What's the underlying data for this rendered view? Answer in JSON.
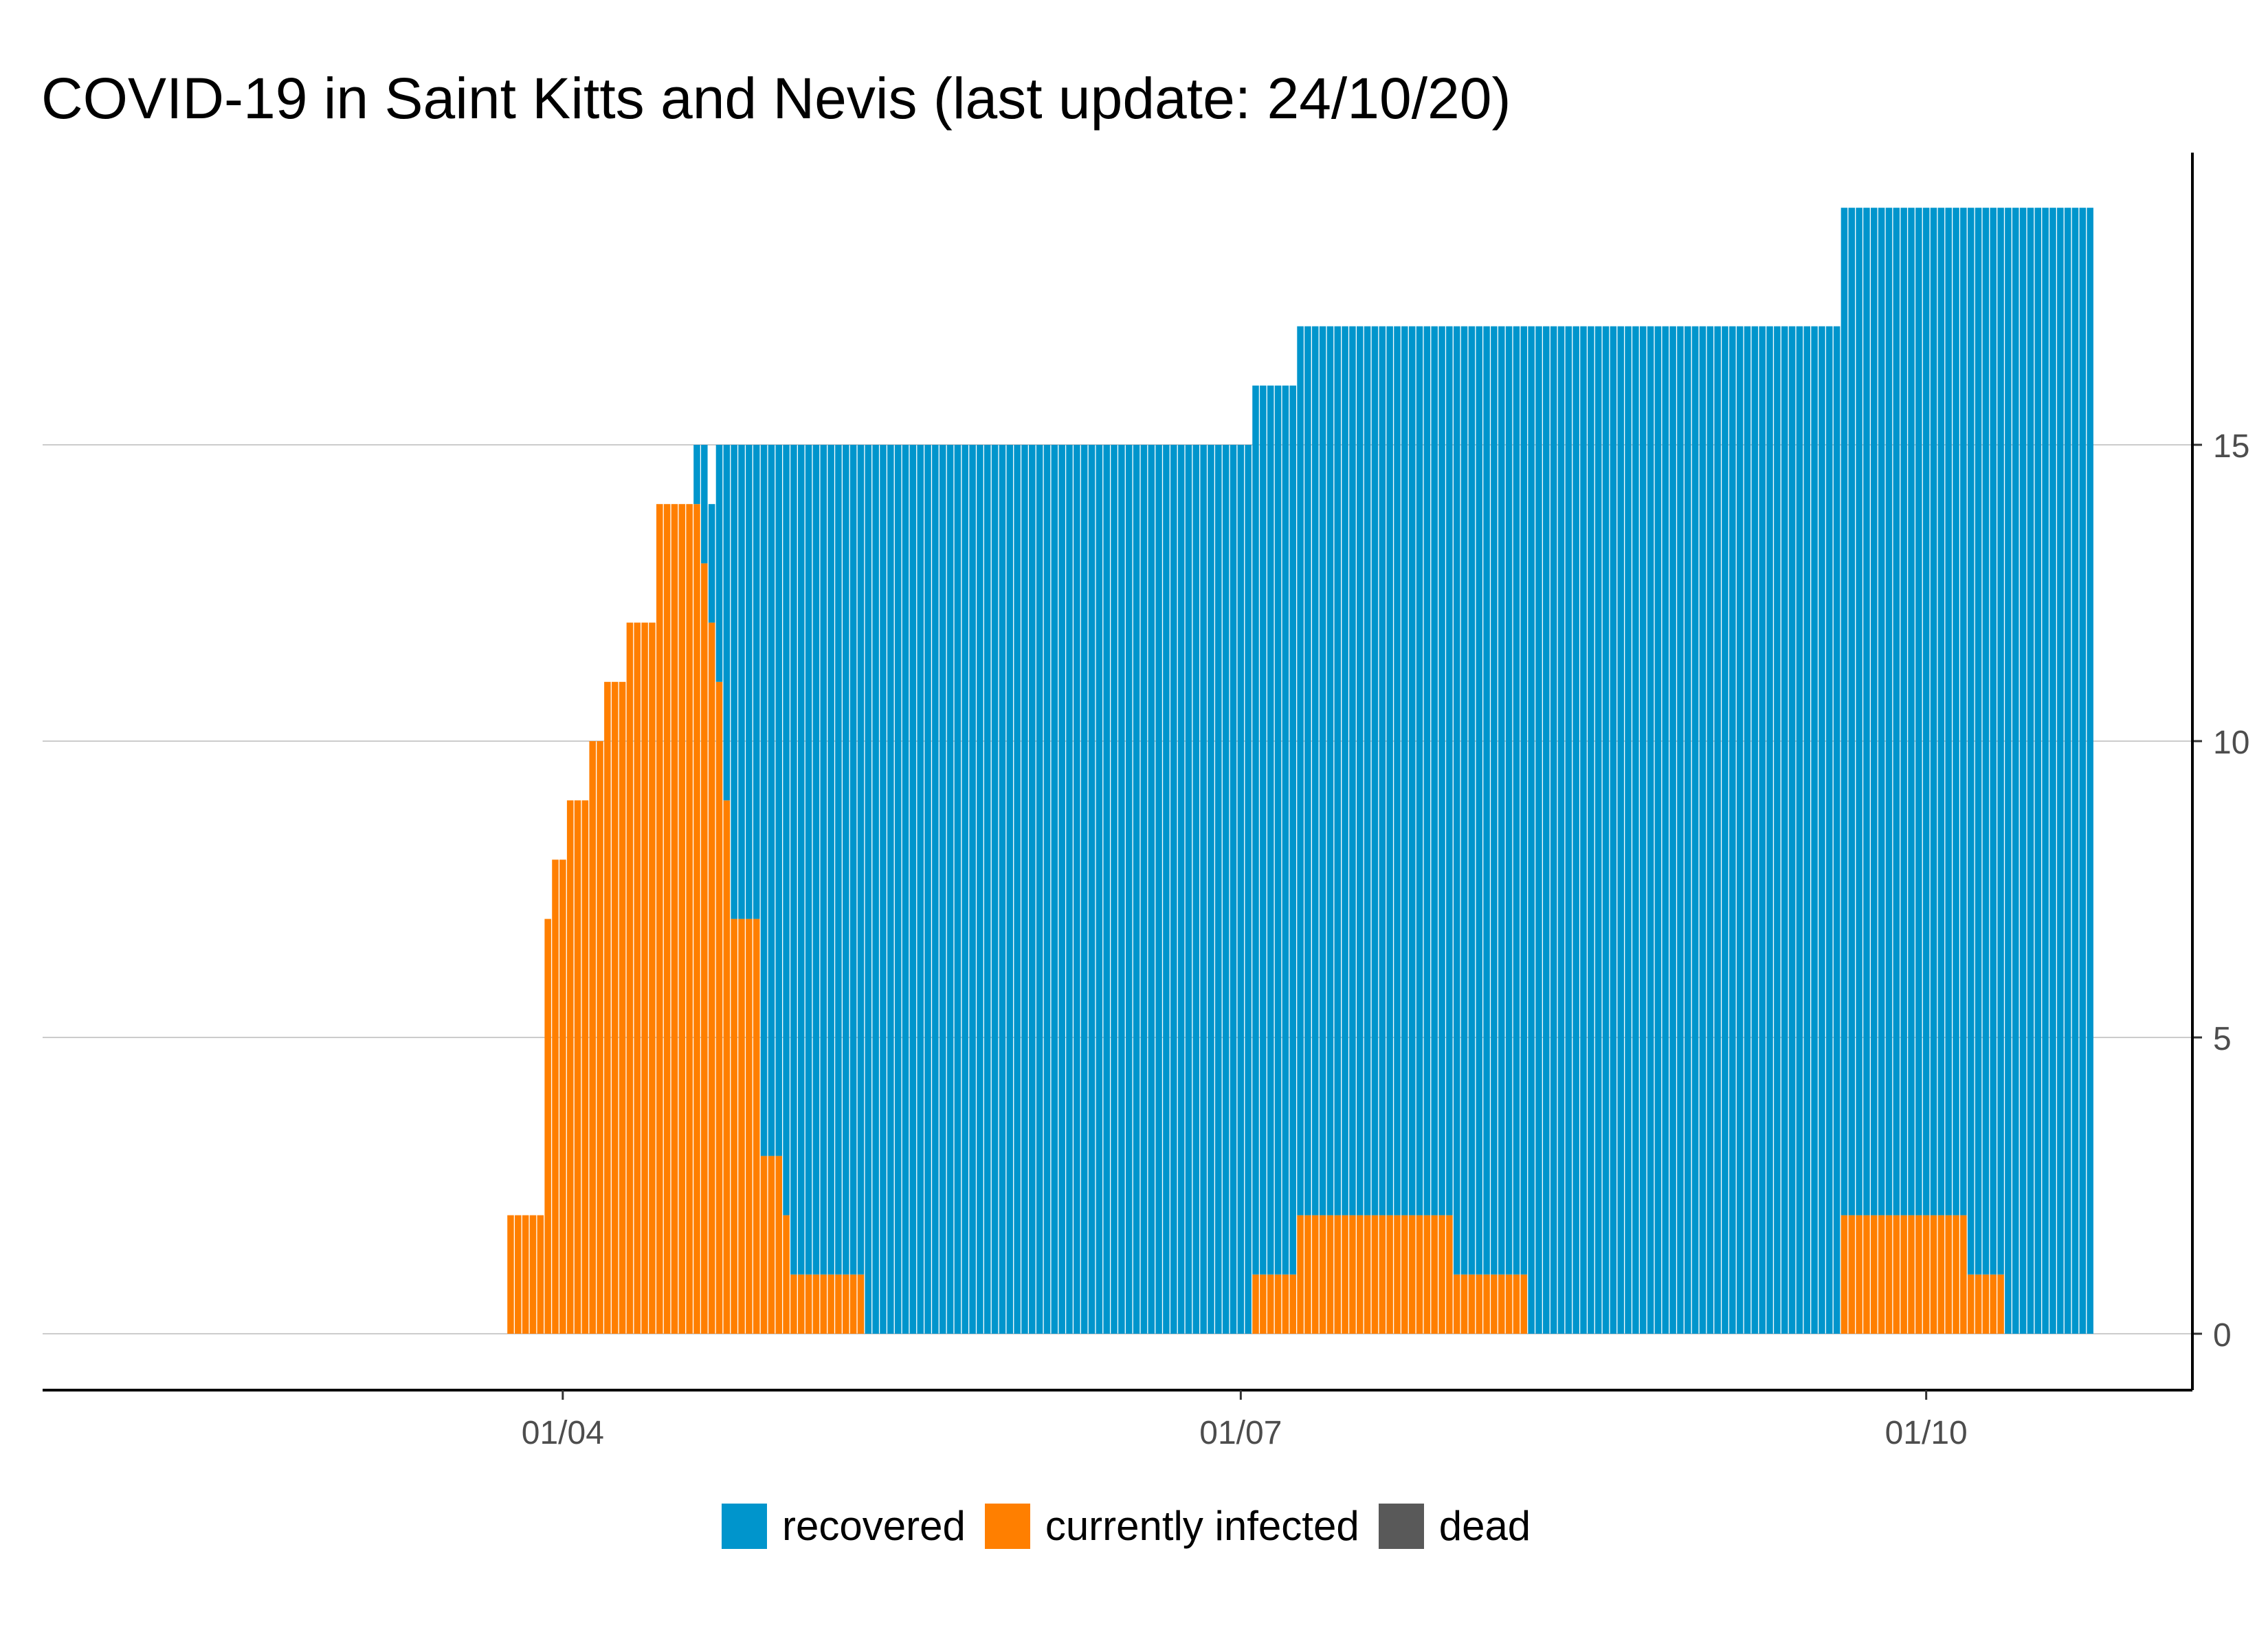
{
  "chart_data": {
    "type": "bar",
    "stacked": true,
    "title": "COVID-19 in Saint Kitts and Nevis (last update: 24/10/20)",
    "xlabel": "",
    "ylabel": "",
    "y_axis_side": "right",
    "ylim": [
      0,
      19
    ],
    "y_ticks": [
      0,
      5,
      10,
      15
    ],
    "x_range": [
      "2020-01-22",
      "2020-10-24"
    ],
    "x_ticks": [
      {
        "date": "2020-04-01",
        "label": "01/04"
      },
      {
        "date": "2020-07-01",
        "label": "01/07"
      },
      {
        "date": "2020-10-01",
        "label": "01/10"
      }
    ],
    "grid": "horizontal major",
    "legend_position": "bottom",
    "series": [
      {
        "name": "recovered",
        "color": "#0095cc",
        "segments": [
          {
            "from": "2020-04-19",
            "to": "2020-04-19",
            "value": 1
          },
          {
            "from": "2020-04-20",
            "to": "2020-04-21",
            "value": 2
          },
          {
            "from": "2020-04-22",
            "to": "2020-04-22",
            "value": 4
          },
          {
            "from": "2020-04-23",
            "to": "2020-04-23",
            "value": 6
          },
          {
            "from": "2020-04-24",
            "to": "2020-04-27",
            "value": 8
          },
          {
            "from": "2020-04-28",
            "to": "2020-04-30",
            "value": 12
          },
          {
            "from": "2020-05-01",
            "to": "2020-05-01",
            "value": 13
          },
          {
            "from": "2020-05-02",
            "to": "2020-05-11",
            "value": 14
          },
          {
            "from": "2020-05-12",
            "to": "2020-07-02",
            "value": 15
          },
          {
            "from": "2020-07-03",
            "to": "2020-07-08",
            "value": 15
          },
          {
            "from": "2020-07-09",
            "to": "2020-07-29",
            "value": 15
          },
          {
            "from": "2020-07-30",
            "to": "2020-08-08",
            "value": 16
          },
          {
            "from": "2020-08-09",
            "to": "2020-09-19",
            "value": 17
          },
          {
            "from": "2020-09-20",
            "to": "2020-10-06",
            "value": 17
          },
          {
            "from": "2020-10-07",
            "to": "2020-10-11",
            "value": 18
          },
          {
            "from": "2020-10-12",
            "to": "2020-10-23",
            "value": 19
          }
        ]
      },
      {
        "name": "currently infected",
        "color": "#ff7f00",
        "segments": [
          {
            "from": "2020-03-25",
            "to": "2020-03-29",
            "value": 2
          },
          {
            "from": "2020-03-30",
            "to": "2020-03-30",
            "value": 7
          },
          {
            "from": "2020-03-31",
            "to": "2020-04-01",
            "value": 8
          },
          {
            "from": "2020-04-02",
            "to": "2020-04-04",
            "value": 9
          },
          {
            "from": "2020-04-05",
            "to": "2020-04-06",
            "value": 10
          },
          {
            "from": "2020-04-07",
            "to": "2020-04-09",
            "value": 11
          },
          {
            "from": "2020-04-10",
            "to": "2020-04-13",
            "value": 12
          },
          {
            "from": "2020-04-14",
            "to": "2020-04-19",
            "value": 14
          },
          {
            "from": "2020-04-20",
            "to": "2020-04-20",
            "value": 13
          },
          {
            "from": "2020-04-21",
            "to": "2020-04-21",
            "value": 12
          },
          {
            "from": "2020-04-22",
            "to": "2020-04-22",
            "value": 11
          },
          {
            "from": "2020-04-23",
            "to": "2020-04-23",
            "value": 9
          },
          {
            "from": "2020-04-24",
            "to": "2020-04-27",
            "value": 7
          },
          {
            "from": "2020-04-28",
            "to": "2020-04-30",
            "value": 3
          },
          {
            "from": "2020-05-01",
            "to": "2020-05-01",
            "value": 2
          },
          {
            "from": "2020-05-02",
            "to": "2020-05-11",
            "value": 1
          },
          {
            "from": "2020-07-03",
            "to": "2020-07-08",
            "value": 1
          },
          {
            "from": "2020-07-09",
            "to": "2020-07-29",
            "value": 2
          },
          {
            "from": "2020-07-30",
            "to": "2020-08-08",
            "value": 1
          },
          {
            "from": "2020-09-20",
            "to": "2020-10-06",
            "value": 2
          },
          {
            "from": "2020-10-07",
            "to": "2020-10-11",
            "value": 1
          }
        ]
      },
      {
        "name": "dead",
        "color": "#595959",
        "segments": []
      }
    ]
  }
}
